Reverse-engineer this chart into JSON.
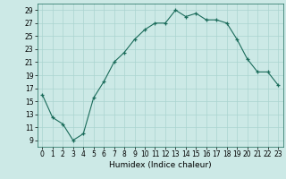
{
  "x": [
    0,
    1,
    2,
    3,
    4,
    5,
    6,
    7,
    8,
    9,
    10,
    11,
    12,
    13,
    14,
    15,
    16,
    17,
    18,
    19,
    20,
    21,
    22,
    23
  ],
  "y": [
    16,
    12.5,
    11.5,
    9.0,
    10.0,
    15.5,
    18.0,
    21.0,
    22.5,
    24.5,
    26.0,
    27.0,
    27.0,
    29.0,
    28.0,
    28.5,
    27.5,
    27.5,
    27.0,
    24.5,
    21.5,
    19.5,
    19.5,
    17.5
  ],
  "xlabel": "Humidex (Indice chaleur)",
  "xlim": [
    -0.5,
    23.5
  ],
  "ylim": [
    8,
    30
  ],
  "yticks": [
    9,
    11,
    13,
    15,
    17,
    19,
    21,
    23,
    25,
    27,
    29
  ],
  "xticks": [
    0,
    1,
    2,
    3,
    4,
    5,
    6,
    7,
    8,
    9,
    10,
    11,
    12,
    13,
    14,
    15,
    16,
    17,
    18,
    19,
    20,
    21,
    22,
    23
  ],
  "line_color": "#1a6b5a",
  "marker": "+",
  "marker_size": 3,
  "bg_color": "#cce9e6",
  "grid_color": "#aad4d0",
  "label_fontsize": 6.5,
  "tick_fontsize": 5.5
}
